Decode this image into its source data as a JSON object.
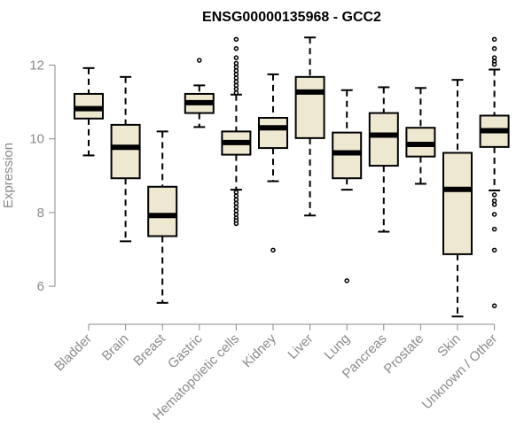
{
  "chart_data": {
    "type": "boxplot",
    "title": "ENSG00000135968 - GCC2",
    "xlabel": "",
    "ylabel": "Expression",
    "ylim": [
      5,
      13
    ],
    "yticks": [
      6,
      8,
      10,
      12
    ],
    "grid": false,
    "colors": {
      "box_fill": "#efe8d0",
      "stroke": "#000000",
      "axis": "#8a8a8a"
    },
    "categories": [
      "Bladder",
      "Brain",
      "Breast",
      "Gastric",
      "Hematopoietic cells",
      "Kidney",
      "Liver",
      "Lung",
      "Pancreas",
      "Prostate",
      "Skin",
      "Unknown / Other"
    ],
    "series": [
      {
        "category": "Bladder",
        "whisker_low": 9.55,
        "q1": 10.55,
        "median": 10.82,
        "q3": 11.22,
        "whisker_high": 11.92,
        "outliers": []
      },
      {
        "category": "Brain",
        "whisker_low": 7.22,
        "q1": 8.93,
        "median": 9.77,
        "q3": 10.38,
        "whisker_high": 11.68,
        "outliers": []
      },
      {
        "category": "Breast",
        "whisker_low": 5.55,
        "q1": 7.36,
        "median": 7.92,
        "q3": 8.7,
        "whisker_high": 10.2,
        "outliers": []
      },
      {
        "category": "Gastric",
        "whisker_low": 10.32,
        "q1": 10.7,
        "median": 10.98,
        "q3": 11.22,
        "whisker_high": 11.45,
        "outliers": [
          12.13
        ]
      },
      {
        "category": "Hematopoietic cells",
        "whisker_low": 8.62,
        "q1": 9.57,
        "median": 9.9,
        "q3": 10.2,
        "whisker_high": 11.2,
        "outliers": [
          12.7,
          12.45,
          12.2,
          12.05,
          11.95,
          11.85,
          11.75,
          11.65,
          11.55,
          11.45,
          11.35,
          11.25,
          8.55,
          8.45,
          8.35,
          8.25,
          8.15,
          8.05,
          7.95,
          7.85,
          7.78,
          7.7
        ]
      },
      {
        "category": "Kidney",
        "whisker_low": 8.85,
        "q1": 9.75,
        "median": 10.3,
        "q3": 10.57,
        "whisker_high": 11.75,
        "outliers": [
          6.98
        ]
      },
      {
        "category": "Liver",
        "whisker_low": 7.92,
        "q1": 10.02,
        "median": 11.27,
        "q3": 11.68,
        "whisker_high": 12.75,
        "outliers": []
      },
      {
        "category": "Lung",
        "whisker_low": 8.62,
        "q1": 8.93,
        "median": 9.62,
        "q3": 10.17,
        "whisker_high": 11.32,
        "outliers": [
          6.15
        ]
      },
      {
        "category": "Pancreas",
        "whisker_low": 7.48,
        "q1": 9.27,
        "median": 10.1,
        "q3": 10.7,
        "whisker_high": 11.4,
        "outliers": []
      },
      {
        "category": "Prostate",
        "whisker_low": 8.78,
        "q1": 9.52,
        "median": 9.85,
        "q3": 10.3,
        "whisker_high": 11.38,
        "outliers": []
      },
      {
        "category": "Skin",
        "whisker_low": 5.18,
        "q1": 6.87,
        "median": 8.63,
        "q3": 9.62,
        "whisker_high": 11.6,
        "outliers": []
      },
      {
        "category": "Unknown / Other",
        "whisker_low": 8.6,
        "q1": 9.78,
        "median": 10.22,
        "q3": 10.63,
        "whisker_high": 11.88,
        "outliers": [
          12.7,
          12.45,
          12.2,
          12.1,
          12.02,
          8.48,
          8.32,
          8.22,
          7.95,
          7.55,
          6.98,
          5.47
        ]
      }
    ]
  }
}
